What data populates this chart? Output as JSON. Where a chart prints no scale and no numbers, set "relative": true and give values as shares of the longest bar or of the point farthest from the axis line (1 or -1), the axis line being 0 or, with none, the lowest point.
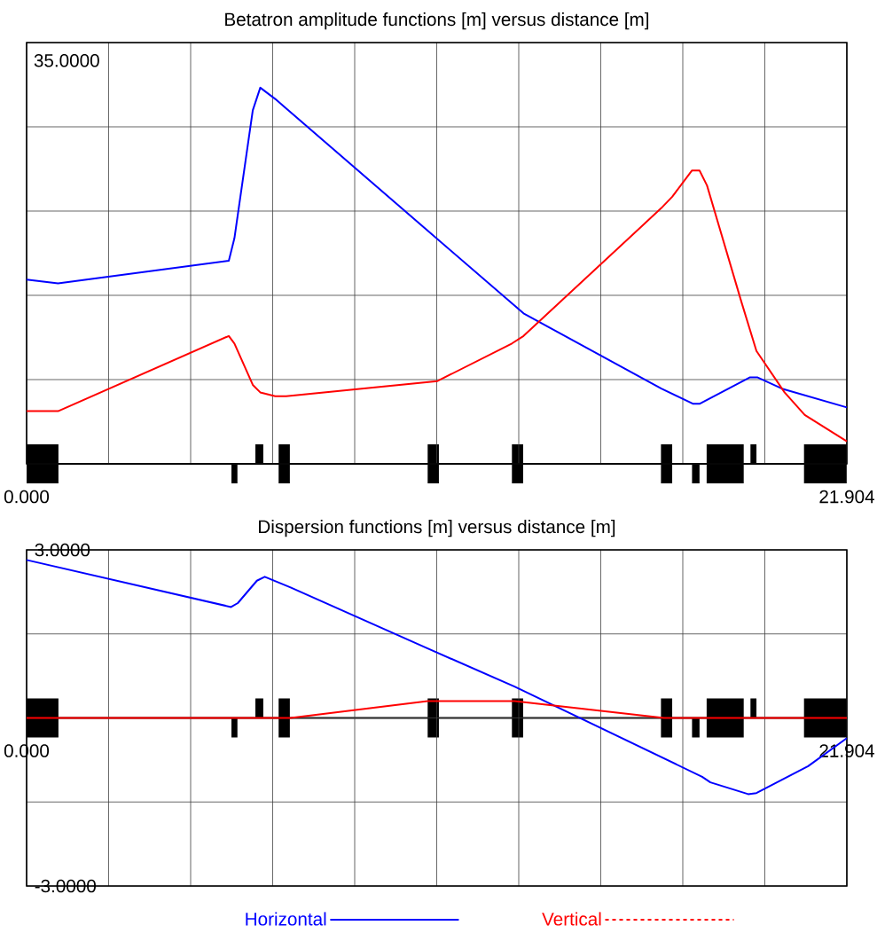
{
  "chart_data": [
    {
      "type": "line",
      "title": "Betatron amplitude functions [m] versus distance [m]",
      "relative": true,
      "xlim": [
        0,
        21.904
      ],
      "grid": true,
      "annotations": [
        "35.0000"
      ],
      "xticks": [
        {
          "value": 0,
          "label": "0.000"
        },
        {
          "value": 2.1904,
          "label": null
        },
        {
          "value": 4.3808,
          "label": null
        },
        {
          "value": 6.5712,
          "label": null
        },
        {
          "value": 8.7616,
          "label": null
        },
        {
          "value": 10.952,
          "label": null
        },
        {
          "value": 13.1424,
          "label": null
        },
        {
          "value": 15.3328,
          "label": null
        },
        {
          "value": 17.5232,
          "label": null
        },
        {
          "value": 19.7136,
          "label": null
        },
        {
          "value": 21.904,
          "label": "21.904"
        }
      ],
      "series": [
        {
          "color": "#0000ff",
          "x": [
            0,
            0.84,
            5.4,
            5.55,
            6.04,
            6.24,
            6.64,
            6.87,
            13.27,
            16.95,
            17.79,
            17.98,
            19.32,
            19.51,
            20.17,
            21.904
          ],
          "values": [
            0.49,
            0.48,
            0.54,
            0.6,
            0.94,
            1,
            0.97,
            0.95,
            0.4,
            0.2,
            0.16,
            0.16,
            0.23,
            0.23,
            0.2,
            0.15
          ]
        },
        {
          "color": "#ff0000",
          "x": [
            0,
            0.84,
            5.4,
            5.55,
            6.04,
            6.24,
            6.64,
            6.93,
            10.97,
            12.96,
            13.27,
            16.95,
            17.24,
            17.77,
            17.97,
            18.17,
            19.09,
            19.49,
            20.24,
            20.78,
            21.904
          ],
          "values": [
            0.14,
            0.14,
            0.34,
            0.32,
            0.21,
            0.19,
            0.18,
            0.18,
            0.22,
            0.32,
            0.34,
            0.68,
            0.71,
            0.78,
            0.78,
            0.74,
            0.43,
            0.3,
            0.19,
            0.13,
            0.06
          ]
        }
      ]
    },
    {
      "type": "line",
      "title": "Dispersion functions [m] versus distance [m]",
      "xlim": [
        0,
        21.904
      ],
      "ylim": [
        -3,
        3
      ],
      "grid": true,
      "legend": "bottom",
      "xticks": [
        {
          "value": 0,
          "label": "0.000"
        },
        {
          "value": 2.1904,
          "label": null
        },
        {
          "value": 4.3808,
          "label": null
        },
        {
          "value": 6.5712,
          "label": null
        },
        {
          "value": 8.7616,
          "label": null
        },
        {
          "value": 10.952,
          "label": null
        },
        {
          "value": 13.1424,
          "label": null
        },
        {
          "value": 15.3328,
          "label": null
        },
        {
          "value": 17.5232,
          "label": null
        },
        {
          "value": 19.7136,
          "label": null
        },
        {
          "value": 21.904,
          "label": "21.904"
        }
      ],
      "yticks": [
        {
          "value": -3,
          "label": "-3.0000"
        },
        {
          "value": -1.5,
          "label": null
        },
        {
          "value": 0,
          "label": null
        },
        {
          "value": 1.5,
          "label": null
        },
        {
          "value": 3,
          "label": "3.0000"
        }
      ],
      "series": [
        {
          "name": "Horizontal",
          "color": "#0000ff",
          "x": [
            0,
            5.46,
            5.64,
            6.15,
            6.36,
            7.05,
            10.71,
            13.03,
            18.04,
            18.26,
            19.27,
            19.49,
            20.87,
            21.904
          ],
          "values": [
            2.82,
            1.98,
            2.05,
            2.45,
            2.52,
            2.33,
            1.24,
            0.56,
            -1.05,
            -1.15,
            -1.36,
            -1.34,
            -0.86,
            -0.36
          ]
        },
        {
          "name": "Vertical",
          "color": "#ff0000",
          "x": [
            0,
            7.05,
            10.71,
            13.03,
            17.02,
            21.904
          ],
          "values": [
            0,
            0,
            0.3,
            0.3,
            0,
            0
          ]
        }
      ]
    }
  ]
}
